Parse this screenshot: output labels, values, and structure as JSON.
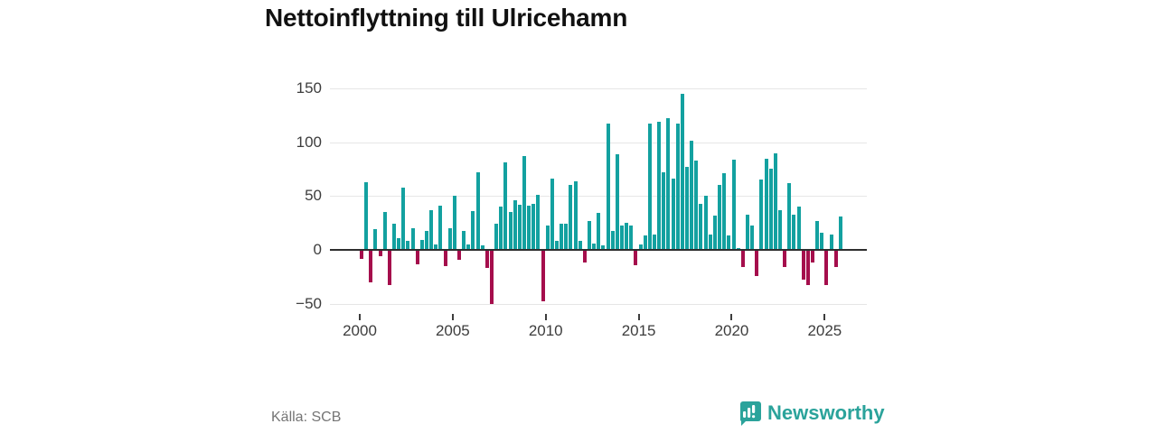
{
  "title": "Nettoinflyttning till Ulricehamn",
  "source": "Källa: SCB",
  "brand": {
    "name": "Newsworthy",
    "icon": "newsworthy-bubble-barchart-icon",
    "color": "#2ba39b"
  },
  "chart_data": {
    "type": "bar",
    "title": "Nettoinflyttning till Ulricehamn",
    "frequency": "quarterly",
    "x_start": "2000Q1",
    "x_end": "2025Q4",
    "values": [
      -8,
      63,
      -30,
      19,
      -6,
      35,
      -33,
      24,
      11,
      58,
      8,
      20,
      -13,
      9,
      18,
      37,
      5,
      41,
      -15,
      20,
      50,
      -9,
      18,
      5,
      36,
      72,
      4,
      -17,
      -50,
      24,
      40,
      81,
      35,
      46,
      42,
      87,
      41,
      43,
      51,
      -48,
      23,
      66,
      8,
      24,
      24,
      60,
      64,
      8,
      -12,
      27,
      6,
      34,
      4,
      117,
      18,
      89,
      23,
      25,
      23,
      -14,
      5,
      13,
      117,
      14,
      119,
      72,
      122,
      66,
      117,
      145,
      77,
      101,
      83,
      43,
      50,
      14,
      32,
      60,
      71,
      13,
      84,
      2,
      -16,
      33,
      23,
      -24,
      65,
      85,
      75,
      90,
      37,
      -16,
      62,
      33,
      40,
      -28,
      -33,
      -12,
      27,
      16,
      -33,
      14,
      -16,
      31
    ],
    "y_ticks": [
      150,
      100,
      50,
      0,
      -50
    ],
    "y_tick_labels": [
      "150",
      "100",
      "50",
      "0",
      "−50"
    ],
    "x_tick_labels": [
      "2000",
      "2005",
      "2010",
      "2015",
      "2020",
      "2025"
    ],
    "x_tick_quarter_indices": [
      0,
      20,
      40,
      60,
      80,
      100
    ],
    "ylim": [
      -58,
      158
    ],
    "grid": "horizontal",
    "legend": "none",
    "colors": {
      "positive": "#13a1a0",
      "negative": "#a50e4c",
      "zero_line": "#2e2e2e"
    }
  }
}
